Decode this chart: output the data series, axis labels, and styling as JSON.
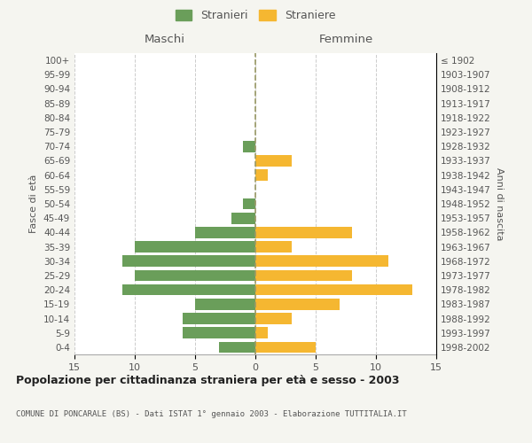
{
  "age_groups": [
    "0-4",
    "5-9",
    "10-14",
    "15-19",
    "20-24",
    "25-29",
    "30-34",
    "35-39",
    "40-44",
    "45-49",
    "50-54",
    "55-59",
    "60-64",
    "65-69",
    "70-74",
    "75-79",
    "80-84",
    "85-89",
    "90-94",
    "95-99",
    "100+"
  ],
  "birth_years": [
    "1998-2002",
    "1993-1997",
    "1988-1992",
    "1983-1987",
    "1978-1982",
    "1973-1977",
    "1968-1972",
    "1963-1967",
    "1958-1962",
    "1953-1957",
    "1948-1952",
    "1943-1947",
    "1938-1942",
    "1933-1937",
    "1928-1932",
    "1923-1927",
    "1918-1922",
    "1913-1917",
    "1908-1912",
    "1903-1907",
    "≤ 1902"
  ],
  "males": [
    3,
    6,
    6,
    5,
    11,
    10,
    11,
    10,
    5,
    2,
    1,
    0,
    0,
    0,
    1,
    0,
    0,
    0,
    0,
    0,
    0
  ],
  "females": [
    5,
    1,
    3,
    7,
    13,
    8,
    11,
    3,
    8,
    0,
    0,
    0,
    1,
    3,
    0,
    0,
    0,
    0,
    0,
    0,
    0
  ],
  "male_color": "#6a9e5a",
  "female_color": "#f5b731",
  "xlim": 15,
  "title": "Popolazione per cittadinanza straniera per età e sesso - 2003",
  "subtitle": "COMUNE DI PONCARALE (BS) - Dati ISTAT 1° gennaio 2003 - Elaborazione TUTTITALIA.IT",
  "ylabel_left": "Fasce di età",
  "ylabel_right": "Anni di nascita",
  "legend_male": "Stranieri",
  "legend_female": "Straniere",
  "maschi_label": "Maschi",
  "femmine_label": "Femmine",
  "bg_color": "#f5f5f0",
  "plot_bg_color": "#ffffff",
  "grid_color": "#cccccc",
  "dashed_line_color": "#999966"
}
